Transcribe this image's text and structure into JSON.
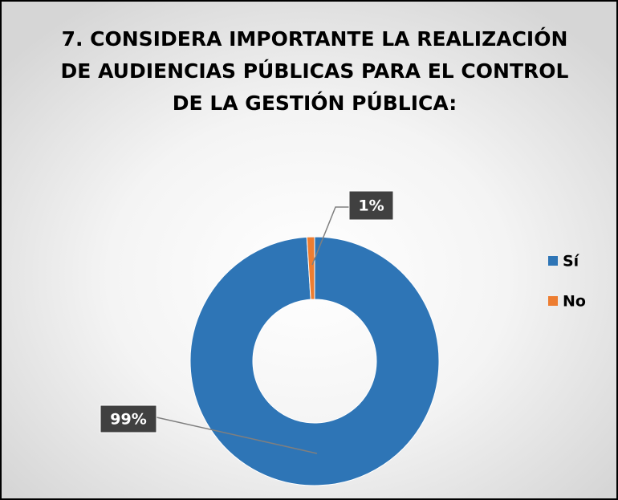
{
  "chart_data": {
    "type": "donut",
    "title": [
      "7. CONSIDERA IMPORTANTE LA REALIZACIÓN",
      "DE AUDIENCIAS PÚBLICAS PARA EL CONTROL",
      "DE LA GESTIÓN PÚBLICA:"
    ],
    "categories": [
      "Sí",
      "No"
    ],
    "values": [
      99,
      1
    ],
    "value_labels": [
      "99%",
      "1%"
    ],
    "colors": [
      "#2e75b6",
      "#ed7d31"
    ],
    "legend": "right"
  }
}
